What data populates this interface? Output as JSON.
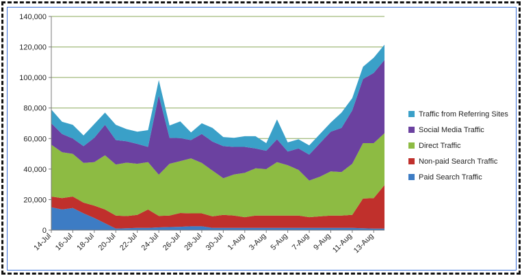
{
  "chart_data": {
    "type": "area",
    "stacked": true,
    "categories": [
      "14-Jul",
      "15-Jul",
      "16-Jul",
      "17-Jul",
      "18-Jul",
      "19-Jul",
      "20-Jul",
      "21-Jul",
      "22-Jul",
      "23-Jul",
      "24-Jul",
      "25-Jul",
      "26-Jul",
      "27-Jul",
      "28-Jul",
      "29-Jul",
      "30-Jul",
      "31-Jul",
      "1-Aug",
      "2-Aug",
      "3-Aug",
      "4-Aug",
      "5-Aug",
      "6-Aug",
      "7-Aug",
      "8-Aug",
      "9-Aug",
      "10-Aug",
      "11-Aug",
      "12-Aug",
      "13-Aug",
      "14-Aug"
    ],
    "x_tick_labels": [
      "14-Jul",
      "16-Jul",
      "18-Jul",
      "20-Jul",
      "22-Jul",
      "24-Jul",
      "26-Jul",
      "28-Jul",
      "30-Jul",
      "1-Aug",
      "3-Aug",
      "5-Aug",
      "7-Aug",
      "9-Aug",
      "11-Aug",
      "13-Aug"
    ],
    "y_tick_labels": [
      "0",
      "20,000",
      "40,000",
      "60,000",
      "80,000",
      "100,000",
      "120,000",
      "140,000"
    ],
    "ylim": [
      0,
      140000
    ],
    "grid": "horizontal",
    "legend_position": "right",
    "series": [
      {
        "name": "Paid Search Traffic",
        "color": "#3d7cc4",
        "values": [
          15000,
          13500,
          14500,
          11000,
          8000,
          4500,
          1000,
          1200,
          1500,
          1500,
          1800,
          2000,
          2200,
          2500,
          2500,
          1500,
          1500,
          1500,
          1500,
          1500,
          1500,
          1500,
          1500,
          1500,
          1500,
          1500,
          1500,
          1500,
          1500,
          1200,
          1000,
          1000
        ]
      },
      {
        "name": "Non-paid Search Traffic",
        "color": "#c0302c",
        "values": [
          7000,
          7500,
          7500,
          7000,
          8000,
          9000,
          8500,
          8000,
          8500,
          12000,
          7500,
          7500,
          9000,
          8500,
          8500,
          7500,
          8500,
          8000,
          7000,
          8000,
          8000,
          8000,
          8000,
          8000,
          7000,
          7500,
          8000,
          8000,
          8500,
          19500,
          20000,
          28500
        ]
      },
      {
        "name": "Direct Traffic",
        "color": "#8dbb43",
        "values": [
          34000,
          30000,
          28000,
          26000,
          28500,
          35500,
          33500,
          35000,
          33500,
          31000,
          27000,
          34000,
          34000,
          36000,
          33000,
          30000,
          24000,
          27000,
          29000,
          31000,
          30500,
          35000,
          33000,
          30000,
          24000,
          26000,
          29000,
          28500,
          33500,
          36300,
          36000,
          34000
        ]
      },
      {
        "name": "Social Media Traffic",
        "color": "#6b41a0",
        "values": [
          14000,
          12000,
          10000,
          11000,
          16000,
          20000,
          16000,
          14000,
          13000,
          10000,
          52000,
          17000,
          15000,
          12000,
          19000,
          19000,
          21000,
          18000,
          17000,
          13000,
          12000,
          15000,
          9000,
          14000,
          17000,
          22000,
          26000,
          29000,
          35000,
          42000,
          46000,
          48000
        ]
      },
      {
        "name": "Traffic from Referring Sites",
        "color": "#3aa0c8",
        "values": [
          9000,
          8000,
          9000,
          7000,
          9000,
          8000,
          10000,
          8000,
          8000,
          11000,
          10000,
          8000,
          11000,
          5000,
          7000,
          9000,
          6000,
          6000,
          7000,
          8000,
          5000,
          13000,
          6000,
          6000,
          6000,
          6000,
          6000,
          10000,
          8000,
          8000,
          10000,
          10000
        ]
      }
    ]
  }
}
